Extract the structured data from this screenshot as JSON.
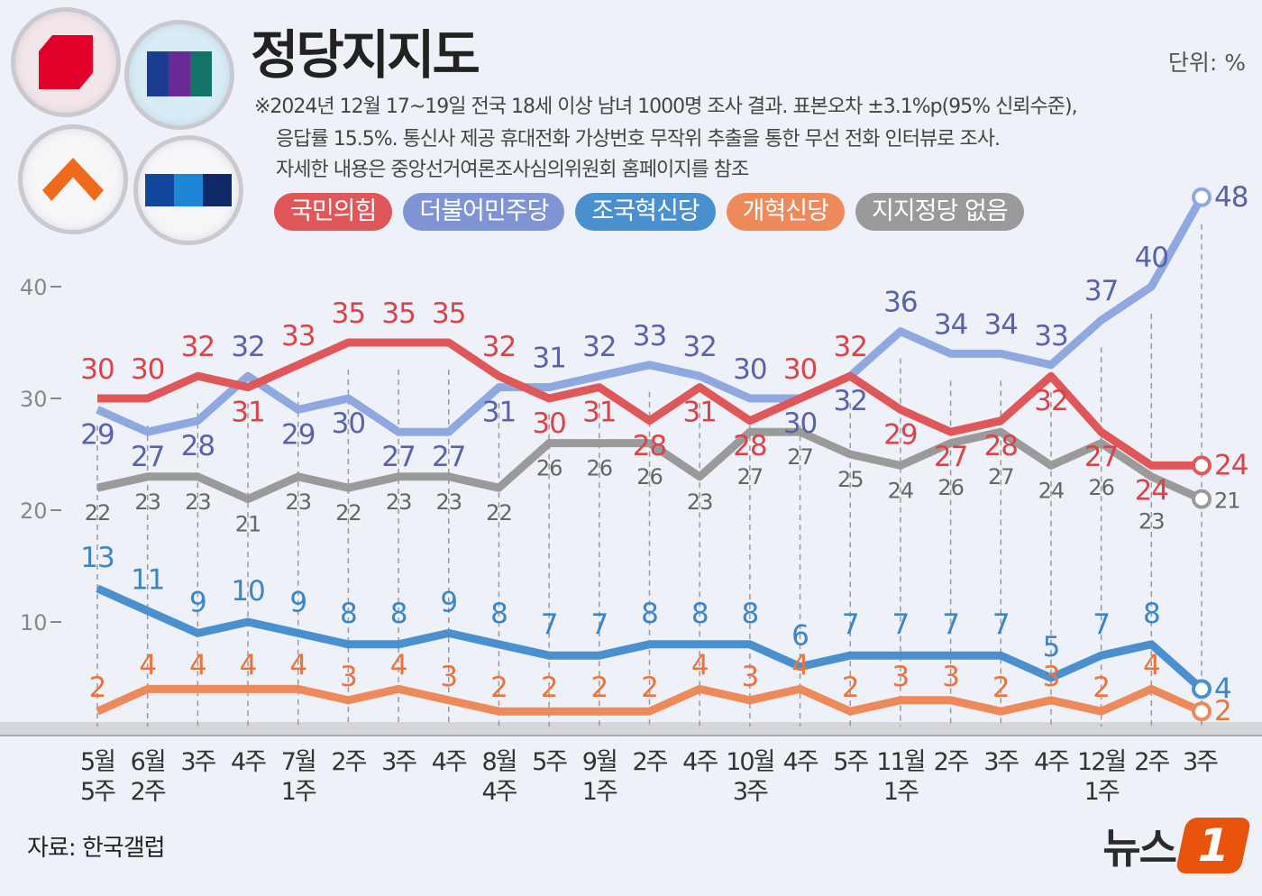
{
  "title": "정당지지도",
  "unit": "단위: %",
  "notes": [
    "※2024년 12월 17~19일 전국 18세 이상 남녀 1000명 조사 결과. 표본오차 ±3.1%p(95% 신뢰수준),",
    "응답률 15.5%. 통신사 제공 휴대전화 가상번호 무작위 추출을 통한 무선 전화 인터뷰로 조사.",
    "자세한 내용은 중앙선거여론조사심의위원회 홈페이지를 참조"
  ],
  "source": "자료: 한국갤럽",
  "brand": {
    "text": "뉴스",
    "mark": "1"
  },
  "chart_data": {
    "type": "line",
    "title": "정당지지도",
    "ylabel": "",
    "ylim": [
      0,
      48
    ],
    "yticks": [
      10,
      20,
      30,
      40
    ],
    "legend_position": "top",
    "categories": [
      "5월 5주",
      "6월 2주",
      "3주",
      "4주",
      "7월 1주",
      "2주",
      "3주",
      "4주",
      "8월 4주",
      "5주",
      "9월 1주",
      "2주",
      "4주",
      "10월 3주",
      "4주",
      "5주",
      "11월 1주",
      "2주",
      "3주",
      "4주",
      "12월 1주",
      "2주",
      "3주"
    ],
    "series": [
      {
        "name": "국민의힘",
        "color": "#e0575a",
        "label_color": "#d9434a",
        "values": [
          30,
          30,
          32,
          31,
          33,
          35,
          35,
          35,
          32,
          30,
          31,
          28,
          31,
          28,
          30,
          32,
          29,
          27,
          28,
          32,
          27,
          24,
          24
        ]
      },
      {
        "name": "더불어민주당",
        "color": "#8fa8e0",
        "label_color": "#5b63a8",
        "values": [
          29,
          27,
          28,
          32,
          29,
          30,
          27,
          27,
          31,
          31,
          32,
          33,
          32,
          30,
          30,
          32,
          36,
          34,
          34,
          33,
          37,
          40,
          48
        ]
      },
      {
        "name": "조국혁신당",
        "color": "#4a90cf",
        "label_color": "#3c86c6",
        "values": [
          13,
          11,
          9,
          10,
          9,
          8,
          8,
          9,
          8,
          7,
          7,
          8,
          8,
          8,
          6,
          7,
          7,
          7,
          7,
          5,
          7,
          8,
          4
        ]
      },
      {
        "name": "개혁신당",
        "color": "#ee8a5a",
        "label_color": "#e9743f",
        "values": [
          2,
          4,
          4,
          4,
          4,
          3,
          4,
          3,
          2,
          2,
          2,
          2,
          4,
          3,
          4,
          2,
          3,
          3,
          2,
          3,
          2,
          4,
          2
        ]
      },
      {
        "name": "지지정당 없음",
        "color": "#9a9a9a",
        "label_color": "#666666",
        "values": [
          22,
          23,
          23,
          21,
          23,
          22,
          23,
          23,
          22,
          26,
          26,
          26,
          23,
          27,
          27,
          25,
          24,
          26,
          27,
          24,
          26,
          23,
          21
        ]
      }
    ]
  }
}
